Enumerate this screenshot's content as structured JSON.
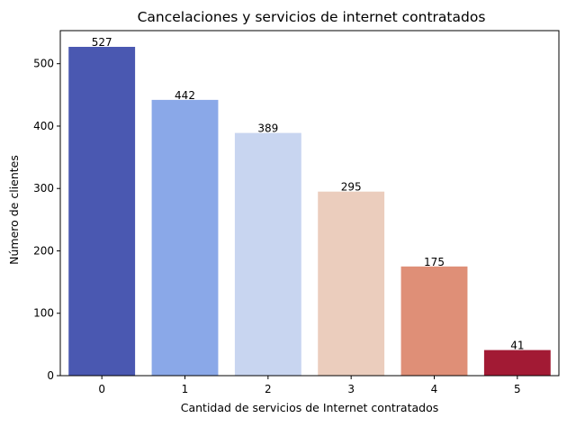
{
  "chart_data": {
    "type": "bar",
    "title": "Cancelaciones y servicios de internet contratados",
    "xlabel": "Cantidad de servicios de Internet contratados",
    "ylabel": "Número de clientes",
    "categories": [
      "0",
      "1",
      "2",
      "3",
      "4",
      "5"
    ],
    "values": [
      527,
      442,
      389,
      295,
      175,
      41
    ],
    "data_labels": [
      "527",
      "442",
      "389",
      "295",
      "175",
      "41"
    ],
    "colors": [
      "#4a58b1",
      "#8aa8e8",
      "#c8d5f0",
      "#ebcdbd",
      "#df8f77",
      "#a21a34"
    ],
    "ylim": [
      0,
      553
    ],
    "yticks": [
      0,
      100,
      200,
      300,
      400,
      500
    ],
    "grid": false,
    "legend": "none"
  }
}
